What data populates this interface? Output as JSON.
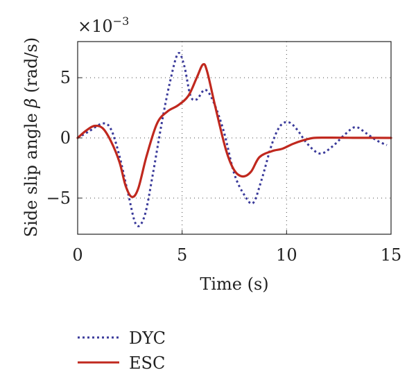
{
  "chart_data": {
    "type": "line",
    "xlabel": "Time (s)",
    "ylabel_prefix": "Side slip angle",
    "ylabel_symbol": "β",
    "ylabel_unit": "(rad/s)",
    "scale_exponent": "−3",
    "scale_base": "×10",
    "xlim": [
      0,
      15
    ],
    "ylim": [
      -8,
      8
    ],
    "xticks": [
      "0",
      "5",
      "10",
      "15"
    ],
    "xtick_values": [
      0,
      5,
      10,
      15
    ],
    "yticks": [
      "−5",
      "0",
      "5"
    ],
    "ytick_values": [
      -5,
      0,
      5
    ],
    "grid": "dotted",
    "legend_position": "below",
    "series": [
      {
        "name": "DYC",
        "style": "dotted",
        "color": "#3a3a9a",
        "points": [
          [
            0,
            0
          ],
          [
            0.5,
            0.5
          ],
          [
            1.2,
            1.2
          ],
          [
            1.6,
            0.7
          ],
          [
            2.0,
            -1.5
          ],
          [
            2.4,
            -4.5
          ],
          [
            2.8,
            -7.2
          ],
          [
            3.2,
            -6.5
          ],
          [
            3.6,
            -3.0
          ],
          [
            4.0,
            1.0
          ],
          [
            4.4,
            4.5
          ],
          [
            4.8,
            7.0
          ],
          [
            5.1,
            6.0
          ],
          [
            5.4,
            3.5
          ],
          [
            5.7,
            3.2
          ],
          [
            6.1,
            4.0
          ],
          [
            6.5,
            3.0
          ],
          [
            7.0,
            0.5
          ],
          [
            7.5,
            -3.0
          ],
          [
            8.0,
            -4.8
          ],
          [
            8.4,
            -5.4
          ],
          [
            8.8,
            -3.5
          ],
          [
            9.3,
            -0.5
          ],
          [
            9.7,
            1.0
          ],
          [
            10.1,
            1.3
          ],
          [
            10.5,
            0.7
          ],
          [
            11.0,
            -0.5
          ],
          [
            11.6,
            -1.3
          ],
          [
            12.2,
            -0.7
          ],
          [
            12.8,
            0.3
          ],
          [
            13.3,
            0.9
          ],
          [
            13.8,
            0.4
          ],
          [
            14.3,
            -0.2
          ],
          [
            14.8,
            -0.6
          ]
        ]
      },
      {
        "name": "ESC",
        "style": "solid",
        "color": "#c0281e",
        "points": [
          [
            0,
            0
          ],
          [
            0.4,
            0.6
          ],
          [
            0.8,
            1.0
          ],
          [
            1.2,
            0.8
          ],
          [
            1.6,
            -0.3
          ],
          [
            2.0,
            -2.0
          ],
          [
            2.3,
            -4.0
          ],
          [
            2.6,
            -4.9
          ],
          [
            2.9,
            -4.2
          ],
          [
            3.3,
            -1.5
          ],
          [
            3.8,
            1.2
          ],
          [
            4.3,
            2.2
          ],
          [
            4.8,
            2.7
          ],
          [
            5.3,
            3.5
          ],
          [
            5.7,
            5.0
          ],
          [
            6.0,
            6.1
          ],
          [
            6.2,
            5.5
          ],
          [
            6.6,
            2.5
          ],
          [
            7.1,
            -1.0
          ],
          [
            7.5,
            -2.7
          ],
          [
            7.9,
            -3.2
          ],
          [
            8.3,
            -2.8
          ],
          [
            8.7,
            -1.6
          ],
          [
            9.3,
            -1.1
          ],
          [
            9.8,
            -0.9
          ],
          [
            10.3,
            -0.5
          ],
          [
            10.8,
            -0.2
          ],
          [
            11.3,
            0.0
          ],
          [
            12.0,
            0.02
          ],
          [
            13.0,
            0.01
          ],
          [
            15.0,
            0.0
          ]
        ]
      }
    ]
  }
}
